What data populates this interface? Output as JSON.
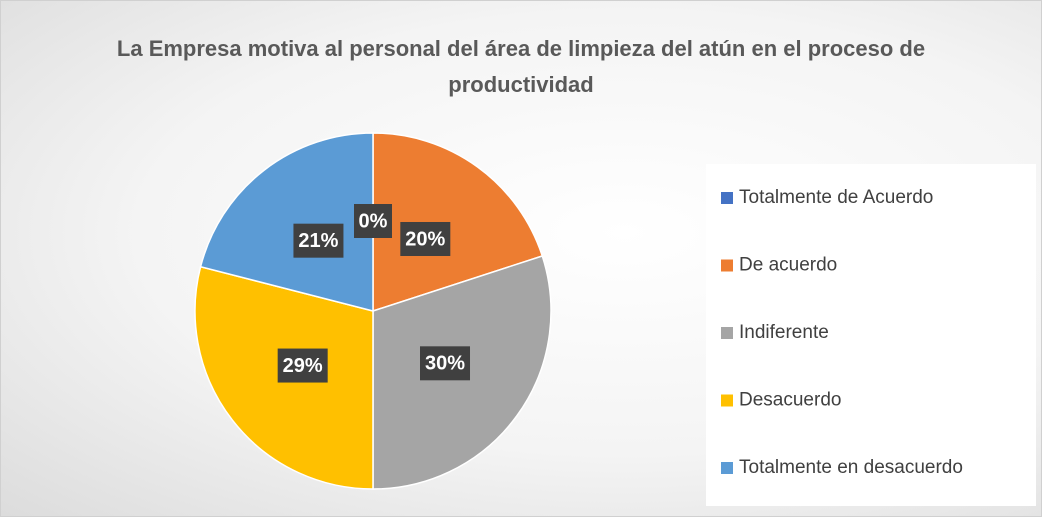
{
  "chart_data": {
    "type": "pie",
    "title": "La Empresa motiva al personal del área de limpieza del atún en el proceso de productividad",
    "categories": [
      "Totalmente de Acuerdo",
      "De acuerdo",
      "Indiferente",
      "Desacuerdo",
      "Totalmente en desacuerdo"
    ],
    "values": [
      0,
      20,
      30,
      29,
      21
    ],
    "value_labels": [
      "0%",
      "20%",
      "30%",
      "29%",
      "21%"
    ],
    "colors": [
      "#4472c4",
      "#ed7d31",
      "#a5a5a5",
      "#ffc000",
      "#5b9bd5"
    ],
    "legend": "right"
  }
}
